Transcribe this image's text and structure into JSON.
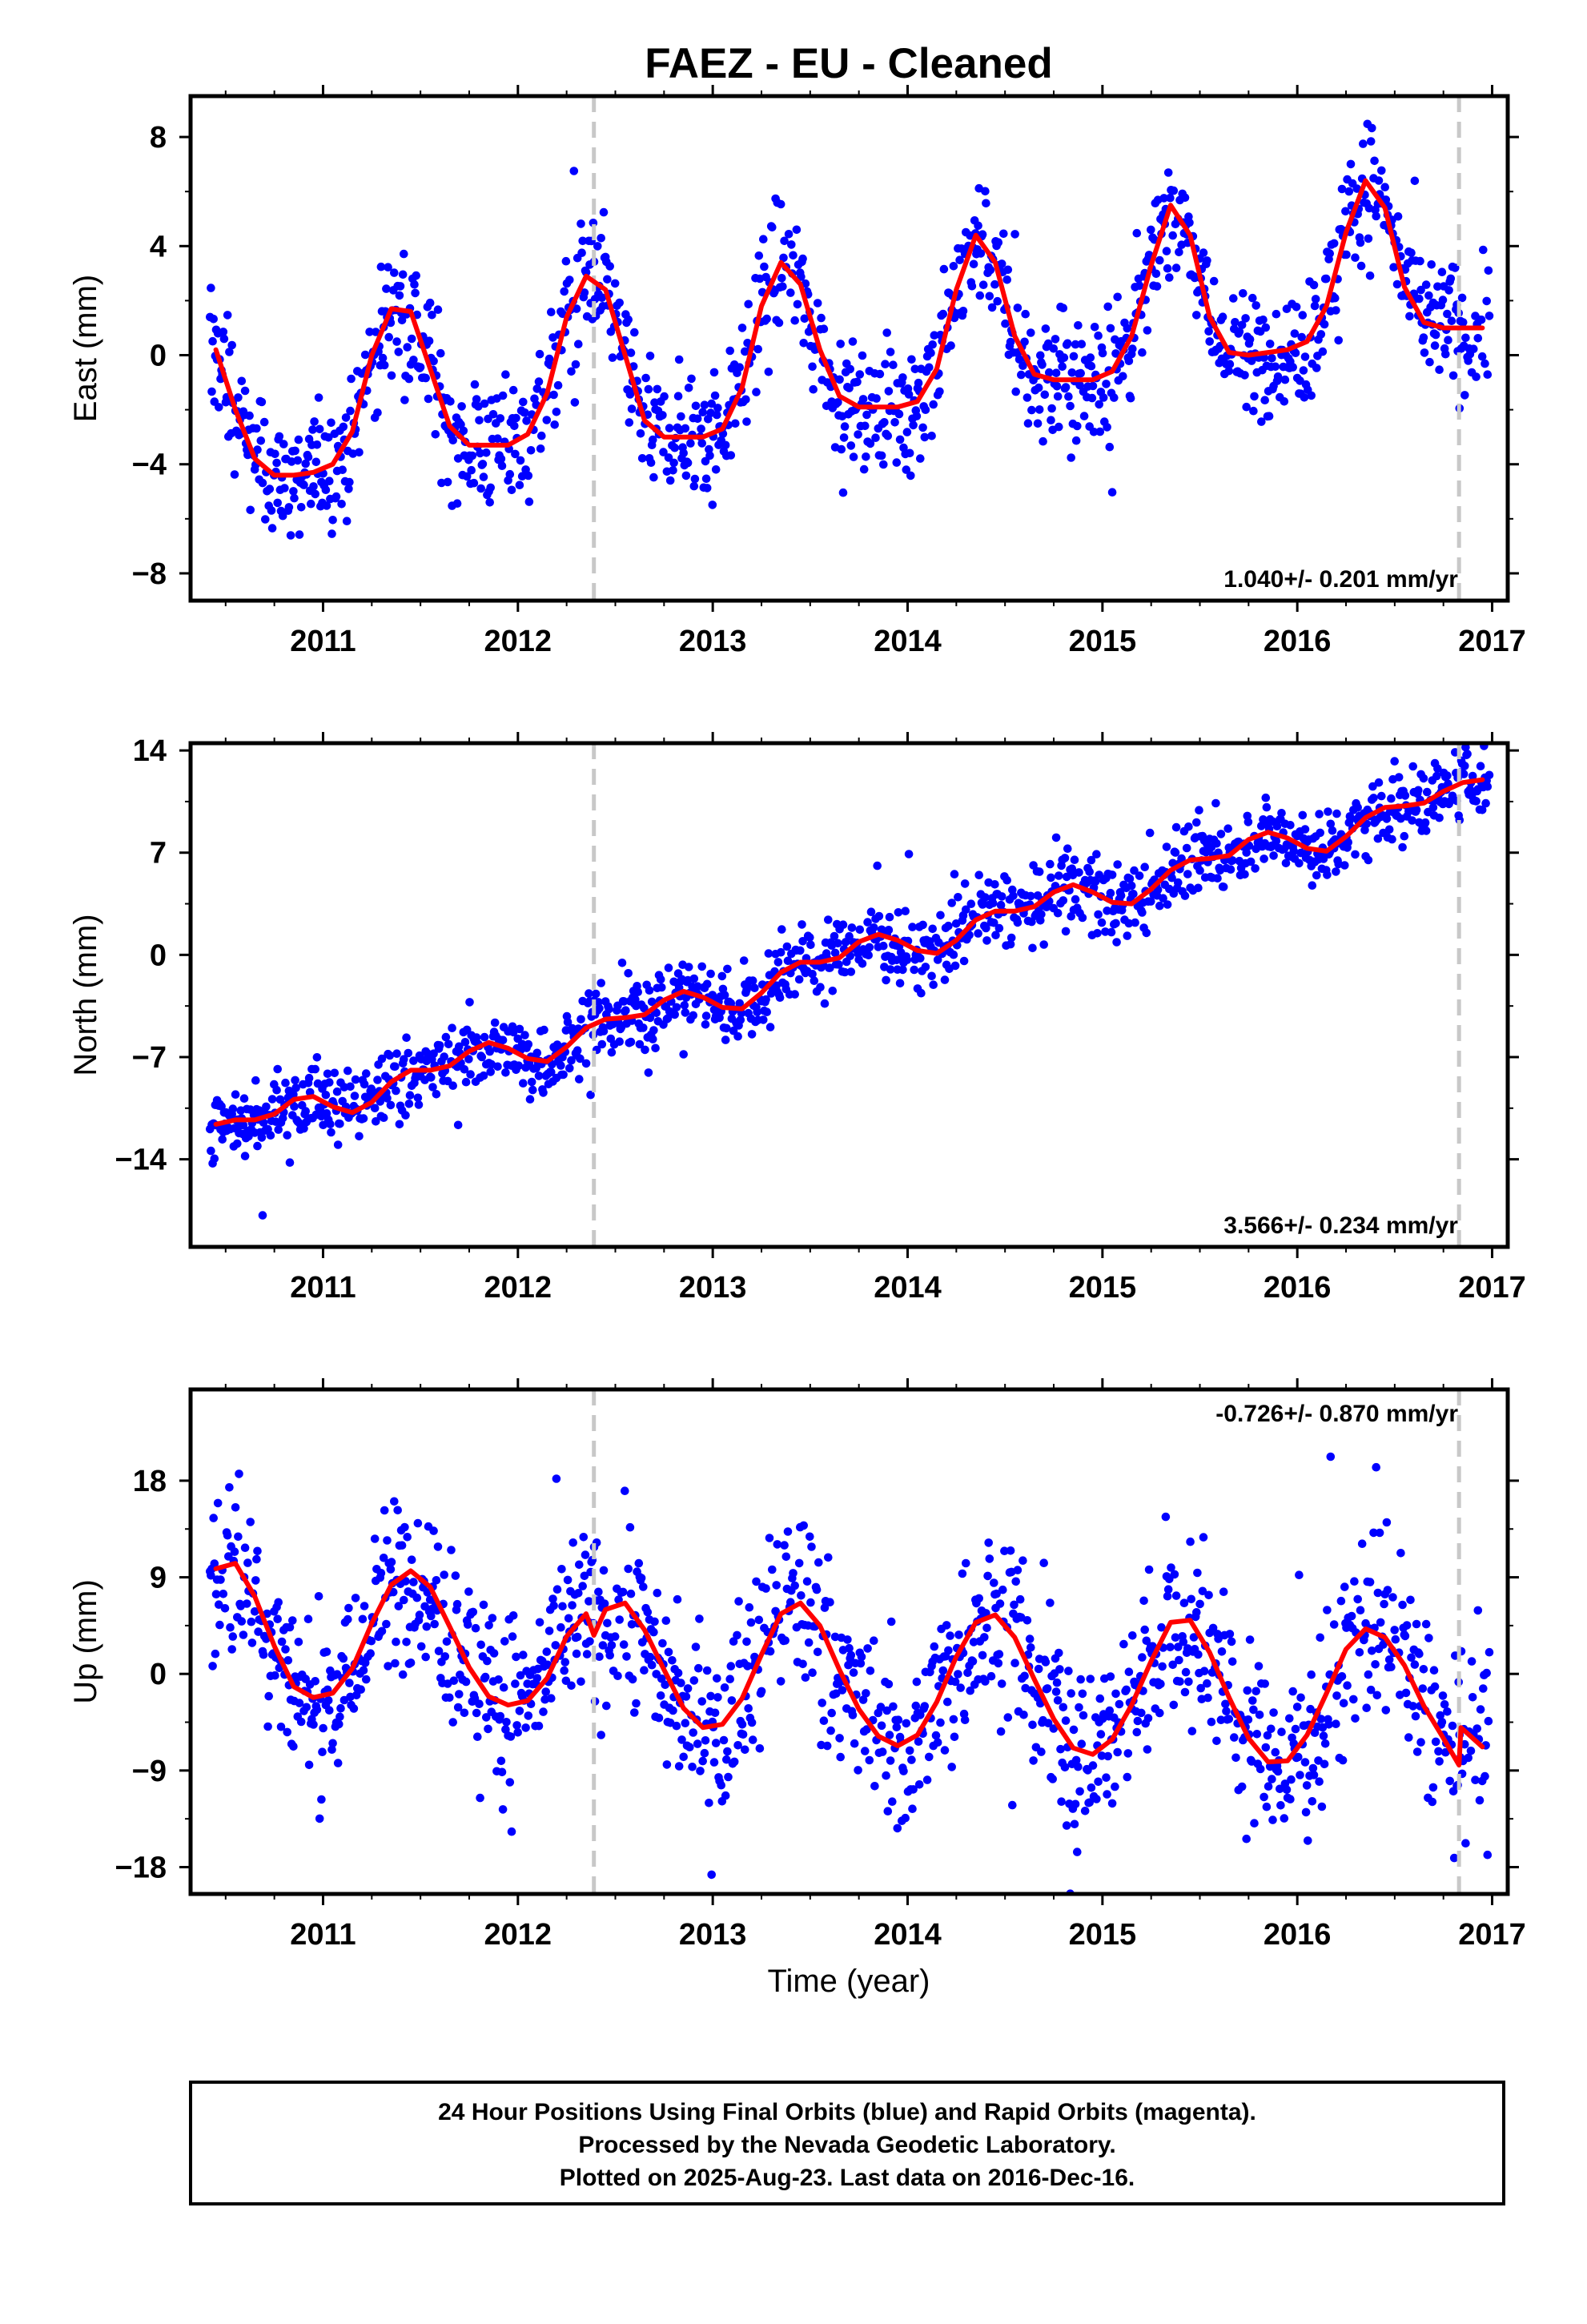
{
  "title": "FAEZ  - EU - Cleaned",
  "xlabel": "Time (year)",
  "footer": {
    "line1": "24 Hour Positions Using Final Orbits (blue) and Rapid Orbits (magenta).",
    "line2": "Processed by the Nevada Geodetic Laboratory.",
    "line3": "Plotted on 2025-Aug-23. Last data on 2016-Dec-16."
  },
  "colors": {
    "points": "#0000ff",
    "model": "#ff0000",
    "event": "#c8c8c8",
    "axis": "#000000"
  },
  "chart_data": [
    {
      "type": "scatter",
      "component": "East",
      "ylabel": "East (mm)",
      "xlim": [
        2010.32,
        2017.08
      ],
      "ylim": [
        -9,
        9.5
      ],
      "yticks": [
        -8,
        -4,
        0,
        4,
        8
      ],
      "xticks": [
        2011,
        2012,
        2013,
        2014,
        2015,
        2016,
        2017
      ],
      "rate_text": "1.040+/- 0.201 mm/yr",
      "rate_position": "bottom-right",
      "event_lines": [
        2012.39,
        2016.83
      ],
      "model": {
        "x": [
          2010.45,
          2010.55,
          2010.65,
          2010.75,
          2010.85,
          2010.95,
          2011.05,
          2011.15,
          2011.25,
          2011.35,
          2011.45,
          2011.55,
          2011.65,
          2011.75,
          2011.85,
          2011.95,
          2012.05,
          2012.15,
          2012.25,
          2012.35,
          2012.45,
          2012.55,
          2012.65,
          2012.75,
          2012.85,
          2012.95,
          2013.05,
          2013.15,
          2013.25,
          2013.35,
          2013.45,
          2013.55,
          2013.65,
          2013.75,
          2013.85,
          2013.95,
          2014.05,
          2014.15,
          2014.25,
          2014.35,
          2014.45,
          2014.55,
          2014.65,
          2014.75,
          2014.85,
          2014.95,
          2015.05,
          2015.15,
          2015.25,
          2015.35,
          2015.45,
          2015.55,
          2015.65,
          2015.75,
          2015.85,
          2015.95,
          2016.05,
          2016.15,
          2016.25,
          2016.35,
          2016.45,
          2016.55,
          2016.65,
          2016.75,
          2016.85,
          2016.95
        ],
        "y": [
          0.2,
          -2.0,
          -3.8,
          -4.4,
          -4.4,
          -4.3,
          -4.0,
          -2.8,
          0.0,
          1.7,
          1.6,
          -0.5,
          -2.6,
          -3.3,
          -3.3,
          -3.3,
          -2.9,
          -1.4,
          1.4,
          2.9,
          2.4,
          0.0,
          -2.4,
          -3.0,
          -3.0,
          -3.0,
          -2.7,
          -1.2,
          1.8,
          3.4,
          2.6,
          0.2,
          -1.5,
          -1.9,
          -1.9,
          -1.9,
          -1.7,
          -0.5,
          2.4,
          4.4,
          3.4,
          0.7,
          -0.7,
          -0.9,
          -0.9,
          -0.9,
          -0.6,
          0.7,
          3.3,
          5.5,
          4.4,
          1.4,
          0.1,
          0.0,
          0.1,
          0.2,
          0.5,
          1.8,
          4.5,
          6.4,
          5.4,
          2.5,
          1.2,
          1.0,
          1.0,
          1.0
        ]
      }
    },
    {
      "type": "scatter",
      "component": "North",
      "ylabel": "North (mm)",
      "xlim": [
        2010.32,
        2017.08
      ],
      "ylim": [
        -20,
        14.5
      ],
      "yticks": [
        -14,
        -7,
        0,
        7,
        14
      ],
      "xticks": [
        2011,
        2012,
        2013,
        2014,
        2015,
        2016,
        2017
      ],
      "rate_text": "3.566+/- 0.234 mm/yr",
      "rate_position": "bottom-right",
      "event_lines": [
        2012.39,
        2016.83
      ],
      "model": {
        "x": [
          2010.45,
          2010.55,
          2010.65,
          2010.75,
          2010.85,
          2010.95,
          2011.05,
          2011.15,
          2011.25,
          2011.35,
          2011.45,
          2011.55,
          2011.65,
          2011.75,
          2011.85,
          2011.95,
          2012.05,
          2012.15,
          2012.25,
          2012.35,
          2012.45,
          2012.55,
          2012.65,
          2012.75,
          2012.85,
          2012.95,
          2013.05,
          2013.15,
          2013.25,
          2013.35,
          2013.45,
          2013.55,
          2013.65,
          2013.75,
          2013.85,
          2013.95,
          2014.05,
          2014.15,
          2014.25,
          2014.35,
          2014.45,
          2014.55,
          2014.65,
          2014.75,
          2014.85,
          2014.95,
          2015.05,
          2015.15,
          2015.25,
          2015.35,
          2015.45,
          2015.55,
          2015.65,
          2015.75,
          2015.85,
          2015.95,
          2016.05,
          2016.15,
          2016.25,
          2016.35,
          2016.45,
          2016.55,
          2016.65,
          2016.75,
          2016.85,
          2016.95
        ],
        "y": [
          -11.6,
          -11.3,
          -11.3,
          -10.9,
          -9.9,
          -9.7,
          -10.4,
          -10.8,
          -10.1,
          -8.7,
          -7.9,
          -7.9,
          -7.6,
          -6.6,
          -6.0,
          -6.4,
          -7.1,
          -7.3,
          -6.3,
          -5.0,
          -4.4,
          -4.3,
          -4.1,
          -3.1,
          -2.5,
          -2.9,
          -3.6,
          -3.7,
          -2.6,
          -1.2,
          -0.5,
          -0.5,
          -0.2,
          0.9,
          1.4,
          1.0,
          0.3,
          0.1,
          1.0,
          2.4,
          3.0,
          3.0,
          3.3,
          4.3,
          4.8,
          4.3,
          3.6,
          3.5,
          4.5,
          5.8,
          6.5,
          6.6,
          6.8,
          7.9,
          8.4,
          8.0,
          7.3,
          7.1,
          8.1,
          9.4,
          10.1,
          10.2,
          10.4,
          11.2,
          11.8,
          12.0
        ]
      }
    },
    {
      "type": "scatter",
      "component": "Up",
      "ylabel": "Up (mm)",
      "xlim": [
        2010.32,
        2017.08
      ],
      "ylim": [
        -20.5,
        26.5
      ],
      "yticks": [
        -18,
        -9,
        0,
        9,
        18
      ],
      "xticks": [
        2011,
        2012,
        2013,
        2014,
        2015,
        2016,
        2017
      ],
      "rate_text": "-0.726+/- 0.870 mm/yr",
      "rate_position": "top-right",
      "event_lines": [
        2012.39,
        2016.83
      ],
      "model": {
        "x": [
          2010.45,
          2010.55,
          2010.65,
          2010.75,
          2010.85,
          2010.95,
          2011.05,
          2011.15,
          2011.25,
          2011.35,
          2011.45,
          2011.55,
          2011.65,
          2011.75,
          2011.85,
          2011.95,
          2012.05,
          2012.15,
          2012.25,
          2012.35,
          2012.39,
          2012.45,
          2012.55,
          2012.65,
          2012.75,
          2012.85,
          2012.95,
          2013.05,
          2013.15,
          2013.25,
          2013.35,
          2013.45,
          2013.55,
          2013.65,
          2013.75,
          2013.85,
          2013.95,
          2014.05,
          2014.15,
          2014.25,
          2014.35,
          2014.45,
          2014.55,
          2014.65,
          2014.75,
          2014.85,
          2014.95,
          2015.05,
          2015.15,
          2015.25,
          2015.35,
          2015.45,
          2015.55,
          2015.65,
          2015.75,
          2015.85,
          2015.95,
          2016.05,
          2016.15,
          2016.25,
          2016.35,
          2016.45,
          2016.55,
          2016.65,
          2016.75,
          2016.83,
          2016.84,
          2016.95
        ],
        "y": [
          9.8,
          10.3,
          7.2,
          2.6,
          -1.2,
          -2.2,
          -1.8,
          0.5,
          4.7,
          8.3,
          9.6,
          8.1,
          4.4,
          0.6,
          -2.1,
          -2.9,
          -2.5,
          -0.4,
          3.5,
          5.6,
          3.6,
          6.0,
          6.6,
          4.1,
          0.4,
          -3.2,
          -5.0,
          -4.7,
          -2.3,
          1.8,
          5.6,
          6.6,
          4.5,
          0.4,
          -3.3,
          -5.8,
          -6.7,
          -5.7,
          -2.6,
          1.6,
          4.8,
          5.5,
          3.4,
          -0.5,
          -4.2,
          -6.9,
          -7.5,
          -6.1,
          -2.9,
          1.2,
          4.8,
          5.0,
          2.0,
          -2.2,
          -6.0,
          -8.2,
          -8.1,
          -5.7,
          -1.8,
          2.3,
          4.2,
          3.4,
          0.8,
          -3.0,
          -6.0,
          -8.5,
          -5.0,
          -6.8
        ]
      }
    }
  ]
}
